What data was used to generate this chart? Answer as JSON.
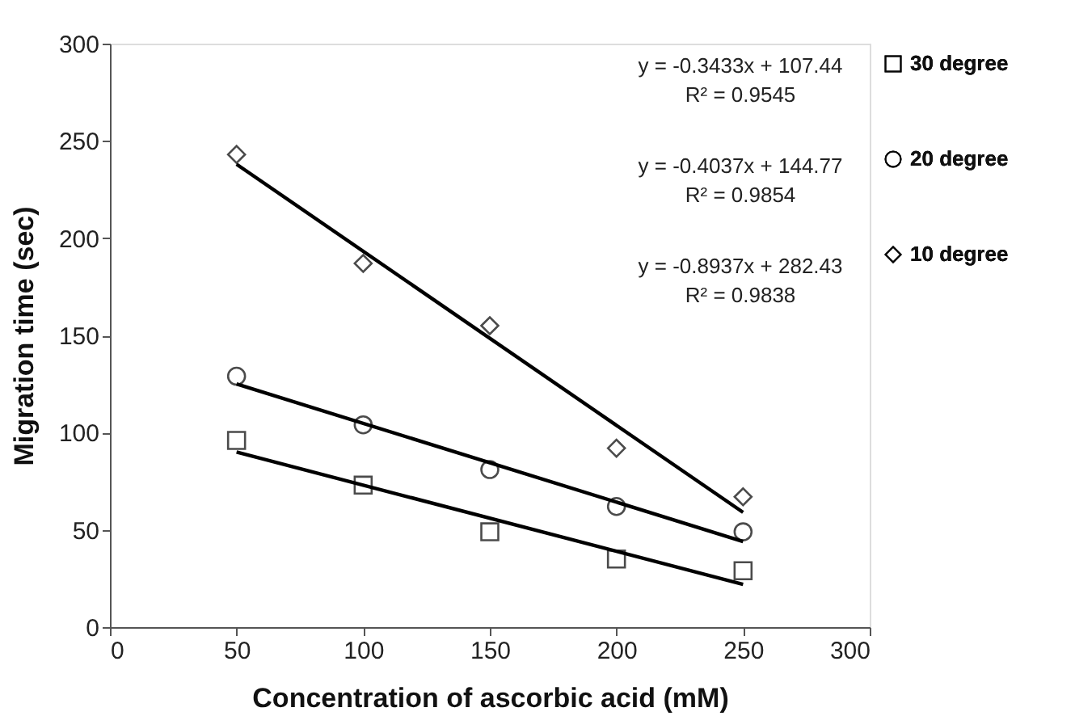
{
  "chart_data": {
    "type": "scatter",
    "xlabel": "Concentration of ascorbic acid (mM)",
    "ylabel": "Migration time (sec)",
    "xlim": [
      0,
      300
    ],
    "xticks": [
      0,
      50,
      100,
      150,
      200,
      250,
      300
    ],
    "ylim": [
      0,
      300
    ],
    "yticks": [
      0,
      50,
      100,
      150,
      200,
      250,
      300
    ],
    "grid": false,
    "legend": "right",
    "series": [
      {
        "name": "30 degree",
        "color": "#000000",
        "marker": "square",
        "x": [
          50,
          100,
          150,
          200,
          250
        ],
        "values": [
          96,
          73,
          49,
          35,
          29
        ]
      },
      {
        "name": "20 degree",
        "color": "#000000",
        "marker": "circle",
        "x": [
          50,
          100,
          150,
          200,
          250
        ],
        "values": [
          129,
          104,
          81,
          62,
          49
        ]
      },
      {
        "name": "10 degree",
        "color": "#000000",
        "marker": "diamond",
        "x": [
          50,
          100,
          150,
          200,
          250
        ],
        "values": [
          243,
          187,
          155,
          92,
          67
        ]
      },
      {
        "type": "line",
        "color": "#000000",
        "marker": "none",
        "x": [
          50,
          250
        ],
        "values": [
          90,
          22
        ]
      },
      {
        "type": "line",
        "color": "#000000",
        "marker": "none",
        "x": [
          50,
          250
        ],
        "values": [
          125,
          44
        ]
      },
      {
        "type": "line",
        "color": "#000000",
        "marker": "none",
        "x": [
          50,
          250
        ],
        "values": [
          238,
          59
        ]
      }
    ],
    "annotations": [
      "y = -0.3433x + 107.44",
      "R² = 0.9545",
      "y = -0.4037x + 144.77",
      "R² = 0.9854",
      "y = -0.8937x + 282.43",
      "R² = 0.9838"
    ]
  }
}
